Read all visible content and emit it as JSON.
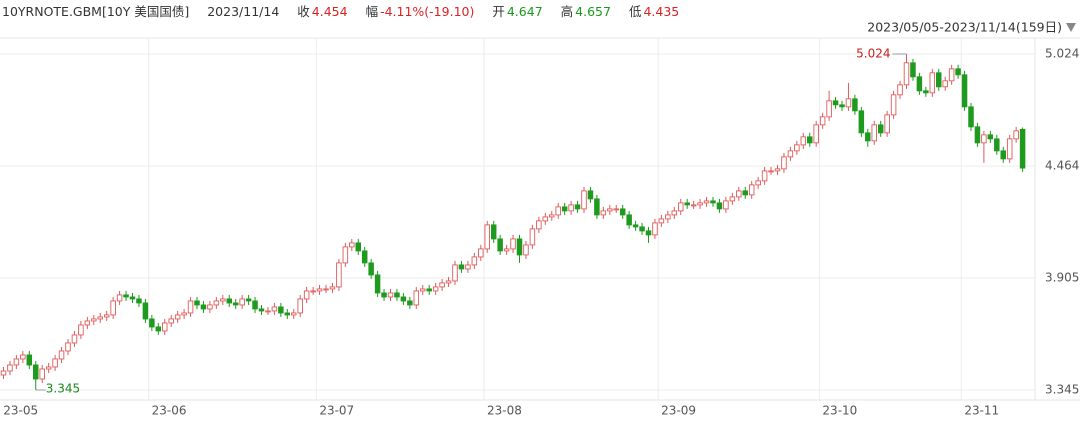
{
  "header": {
    "symbol": "10YRNOTE.GBM[10Y 美国国债]",
    "date": "2023/11/14",
    "close_label": "收",
    "close": 4.454,
    "change_label": "幅",
    "change": "-4.11%(-19.10)",
    "open_label": "开",
    "open": 4.647,
    "high_label": "高",
    "high": 4.657,
    "low_label": "低",
    "low": 4.435,
    "range": "2023/05/05-2023/11/14(159日)"
  },
  "chart_data": {
    "type": "candlestick",
    "up_color": "#e05a5a",
    "down_color": "#1e9a1e",
    "grid": true,
    "ylim": [
      3.295,
      5.104
    ],
    "yticks": [
      3.345,
      3.905,
      4.464,
      5.024
    ],
    "categories": [
      "23-05",
      null,
      null,
      null,
      null,
      null,
      null,
      null,
      null,
      null,
      null,
      null,
      null,
      null,
      null,
      null,
      null,
      null,
      null,
      null,
      null,
      null,
      null,
      "23-06",
      null,
      null,
      null,
      null,
      null,
      null,
      null,
      null,
      null,
      null,
      null,
      null,
      null,
      null,
      null,
      null,
      null,
      null,
      null,
      null,
      null,
      null,
      null,
      null,
      null,
      "23-07",
      null,
      null,
      null,
      null,
      null,
      null,
      null,
      null,
      null,
      null,
      null,
      null,
      null,
      null,
      null,
      null,
      null,
      null,
      null,
      null,
      null,
      null,
      null,
      null,
      null,
      "23-08",
      null,
      null,
      null,
      null,
      null,
      null,
      null,
      null,
      null,
      null,
      null,
      null,
      null,
      null,
      null,
      null,
      null,
      null,
      null,
      null,
      null,
      null,
      null,
      null,
      null,
      null,
      "23-09",
      null,
      null,
      null,
      null,
      null,
      null,
      null,
      null,
      null,
      null,
      null,
      null,
      null,
      null,
      null,
      null,
      null,
      null,
      null,
      null,
      null,
      null,
      null,
      null,
      "23-10",
      null,
      null,
      null,
      null,
      null,
      null,
      null,
      null,
      null,
      null,
      null,
      null,
      null,
      null,
      null,
      null,
      null,
      null,
      null,
      null,
      null,
      "23-11",
      null,
      null,
      null,
      null,
      null,
      null,
      null,
      null,
      null
    ],
    "open": [
      3.42,
      3.44,
      3.47,
      3.5,
      3.52,
      3.47,
      3.4,
      3.45,
      3.46,
      3.5,
      3.54,
      3.58,
      3.62,
      3.67,
      3.69,
      3.7,
      3.71,
      3.72,
      3.79,
      3.82,
      3.81,
      3.8,
      3.78,
      3.7,
      3.66,
      3.64,
      3.68,
      3.7,
      3.72,
      3.73,
      3.79,
      3.77,
      3.75,
      3.77,
      3.79,
      3.8,
      3.78,
      3.77,
      3.8,
      3.79,
      3.75,
      3.74,
      3.74,
      3.76,
      3.73,
      3.72,
      3.73,
      3.8,
      3.84,
      3.84,
      3.85,
      3.85,
      3.86,
      3.98,
      4.06,
      4.08,
      4.04,
      3.98,
      3.92,
      3.83,
      3.81,
      3.83,
      3.81,
      3.79,
      3.77,
      3.84,
      3.85,
      3.84,
      3.86,
      3.88,
      3.89,
      3.97,
      3.95,
      3.97,
      4.01,
      4.05,
      4.17,
      4.1,
      4.04,
      4.05,
      4.1,
      4.02,
      4.07,
      4.15,
      4.19,
      4.21,
      4.22,
      4.26,
      4.24,
      4.27,
      4.25,
      4.34,
      4.3,
      4.22,
      4.24,
      4.25,
      4.25,
      4.22,
      4.17,
      4.16,
      4.14,
      4.12,
      4.18,
      4.2,
      4.22,
      4.24,
      4.28,
      4.27,
      4.27,
      4.28,
      4.29,
      4.28,
      4.25,
      4.29,
      4.31,
      4.34,
      4.32,
      4.37,
      4.39,
      4.44,
      4.44,
      4.45,
      4.51,
      4.54,
      4.57,
      4.61,
      4.58,
      4.67,
      4.71,
      4.79,
      4.77,
      4.76,
      4.8,
      4.74,
      4.63,
      4.59,
      4.67,
      4.63,
      4.72,
      4.82,
      4.87,
      4.98,
      4.91,
      4.84,
      4.83,
      4.93,
      4.86,
      4.89,
      4.95,
      4.92,
      4.76,
      4.66,
      4.58,
      4.62,
      4.6,
      4.54,
      4.5,
      4.6,
      4.647
    ],
    "high": [
      3.46,
      3.49,
      3.52,
      3.54,
      3.54,
      3.49,
      3.47,
      3.48,
      3.52,
      3.56,
      3.6,
      3.64,
      3.69,
      3.71,
      3.72,
      3.73,
      3.74,
      3.81,
      3.84,
      3.84,
      3.83,
      3.82,
      3.8,
      3.72,
      3.68,
      3.7,
      3.72,
      3.74,
      3.75,
      3.81,
      3.81,
      3.79,
      3.79,
      3.81,
      3.82,
      3.82,
      3.8,
      3.82,
      3.82,
      3.81,
      3.77,
      3.76,
      3.78,
      3.78,
      3.75,
      3.75,
      3.82,
      3.86,
      3.86,
      3.87,
      3.87,
      3.88,
      4.0,
      4.08,
      4.1,
      4.1,
      4.06,
      4.0,
      3.94,
      3.85,
      3.85,
      3.85,
      3.83,
      3.81,
      3.86,
      3.87,
      3.87,
      3.88,
      3.9,
      3.91,
      3.99,
      3.99,
      3.99,
      4.03,
      4.07,
      4.19,
      4.19,
      4.12,
      4.07,
      4.12,
      4.12,
      4.09,
      4.17,
      4.21,
      4.23,
      4.24,
      4.28,
      4.28,
      4.29,
      4.29,
      4.36,
      4.36,
      4.32,
      4.26,
      4.27,
      4.27,
      4.27,
      4.24,
      4.19,
      4.18,
      4.16,
      4.2,
      4.22,
      4.24,
      4.26,
      4.3,
      4.3,
      4.29,
      4.3,
      4.31,
      4.31,
      4.3,
      4.31,
      4.33,
      4.36,
      4.36,
      4.39,
      4.41,
      4.46,
      4.46,
      4.47,
      4.53,
      4.56,
      4.59,
      4.63,
      4.63,
      4.69,
      4.73,
      4.84,
      4.81,
      4.79,
      4.88,
      4.82,
      4.76,
      4.65,
      4.69,
      4.69,
      4.74,
      4.84,
      4.89,
      5.024,
      5.0,
      4.93,
      4.86,
      4.95,
      4.95,
      4.91,
      4.97,
      4.97,
      4.94,
      4.78,
      4.68,
      4.64,
      4.64,
      4.62,
      4.56,
      4.62,
      4.66,
      4.657
    ],
    "low": [
      3.4,
      3.42,
      3.45,
      3.48,
      3.45,
      3.345,
      3.38,
      3.43,
      3.44,
      3.48,
      3.52,
      3.56,
      3.6,
      3.65,
      3.67,
      3.68,
      3.69,
      3.7,
      3.77,
      3.79,
      3.78,
      3.76,
      3.68,
      3.64,
      3.62,
      3.62,
      3.66,
      3.68,
      3.7,
      3.71,
      3.75,
      3.73,
      3.73,
      3.75,
      3.77,
      3.76,
      3.75,
      3.75,
      3.77,
      3.73,
      3.72,
      3.72,
      3.72,
      3.71,
      3.7,
      3.7,
      3.71,
      3.78,
      3.82,
      3.82,
      3.83,
      3.83,
      3.84,
      3.96,
      4.04,
      4.02,
      3.96,
      3.9,
      3.81,
      3.79,
      3.79,
      3.79,
      3.77,
      3.75,
      3.75,
      3.82,
      3.82,
      3.82,
      3.84,
      3.86,
      3.87,
      3.93,
      3.93,
      3.95,
      3.99,
      4.03,
      4.08,
      4.02,
      4.02,
      4.03,
      3.98,
      4.0,
      4.05,
      4.13,
      4.17,
      4.19,
      4.2,
      4.22,
      4.22,
      4.23,
      4.23,
      4.28,
      4.2,
      4.2,
      4.22,
      4.23,
      4.2,
      4.15,
      4.14,
      4.12,
      4.08,
      4.1,
      4.16,
      4.18,
      4.2,
      4.22,
      4.25,
      4.25,
      4.25,
      4.26,
      4.26,
      4.23,
      4.23,
      4.27,
      4.29,
      4.3,
      4.3,
      4.35,
      4.37,
      4.42,
      4.42,
      4.43,
      4.49,
      4.52,
      4.55,
      4.56,
      4.56,
      4.65,
      4.69,
      4.75,
      4.74,
      4.74,
      4.72,
      4.61,
      4.56,
      4.57,
      4.61,
      4.61,
      4.7,
      4.8,
      4.85,
      4.89,
      4.82,
      4.81,
      4.81,
      4.84,
      4.84,
      4.87,
      4.9,
      4.74,
      4.64,
      4.56,
      4.48,
      4.58,
      4.52,
      4.48,
      4.48,
      4.58,
      4.435
    ],
    "close": [
      3.44,
      3.47,
      3.5,
      3.52,
      3.47,
      3.4,
      3.45,
      3.46,
      3.5,
      3.54,
      3.58,
      3.62,
      3.67,
      3.69,
      3.7,
      3.71,
      3.72,
      3.79,
      3.82,
      3.81,
      3.8,
      3.78,
      3.7,
      3.66,
      3.64,
      3.68,
      3.7,
      3.72,
      3.73,
      3.79,
      3.77,
      3.75,
      3.77,
      3.79,
      3.8,
      3.78,
      3.77,
      3.8,
      3.79,
      3.75,
      3.74,
      3.74,
      3.76,
      3.73,
      3.72,
      3.73,
      3.8,
      3.84,
      3.84,
      3.85,
      3.85,
      3.86,
      3.98,
      4.06,
      4.08,
      4.04,
      3.98,
      3.92,
      3.83,
      3.81,
      3.83,
      3.81,
      3.79,
      3.77,
      3.84,
      3.85,
      3.84,
      3.86,
      3.88,
      3.89,
      3.97,
      3.95,
      3.97,
      4.01,
      4.05,
      4.17,
      4.1,
      4.04,
      4.05,
      4.1,
      4.02,
      4.07,
      4.15,
      4.19,
      4.21,
      4.22,
      4.26,
      4.24,
      4.27,
      4.25,
      4.34,
      4.3,
      4.22,
      4.24,
      4.25,
      4.25,
      4.22,
      4.17,
      4.16,
      4.14,
      4.12,
      4.18,
      4.2,
      4.22,
      4.24,
      4.28,
      4.27,
      4.27,
      4.28,
      4.29,
      4.28,
      4.25,
      4.29,
      4.31,
      4.34,
      4.32,
      4.37,
      4.39,
      4.44,
      4.44,
      4.45,
      4.51,
      4.54,
      4.57,
      4.61,
      4.58,
      4.67,
      4.71,
      4.79,
      4.77,
      4.76,
      4.8,
      4.74,
      4.63,
      4.59,
      4.67,
      4.63,
      4.72,
      4.82,
      4.87,
      4.98,
      4.91,
      4.84,
      4.83,
      4.93,
      4.86,
      4.89,
      4.95,
      4.92,
      4.76,
      4.66,
      4.58,
      4.62,
      4.6,
      4.54,
      4.5,
      4.6,
      4.64,
      4.454
    ]
  }
}
